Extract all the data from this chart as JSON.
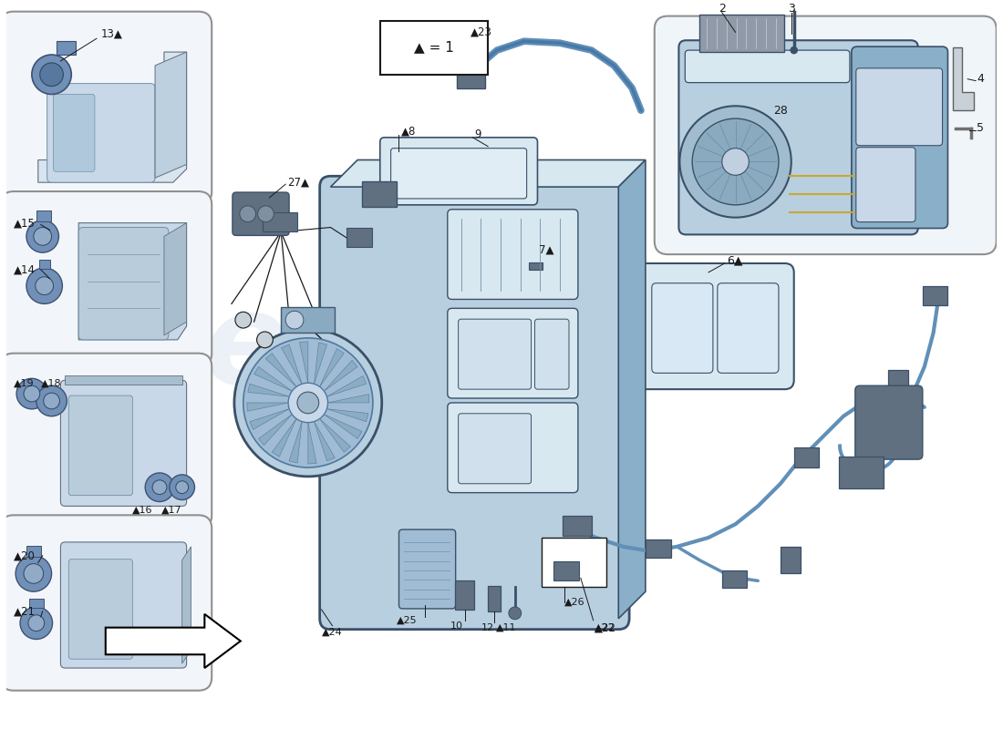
{
  "bg_color": "#ffffff",
  "light_blue": "#b8cfe0",
  "mid_blue": "#8aafc8",
  "dark_blue": "#5a80a0",
  "very_light_blue": "#d8e8f0",
  "box_edge": "#7090a8",
  "dark_edge": "#3a5068",
  "wire_blue": "#6090b8",
  "connector_gray": "#607080",
  "light_gray": "#c8d0d8",
  "white": "#ffffff",
  "black": "#1a1a1a",
  "watermark": "#c8d8e8"
}
